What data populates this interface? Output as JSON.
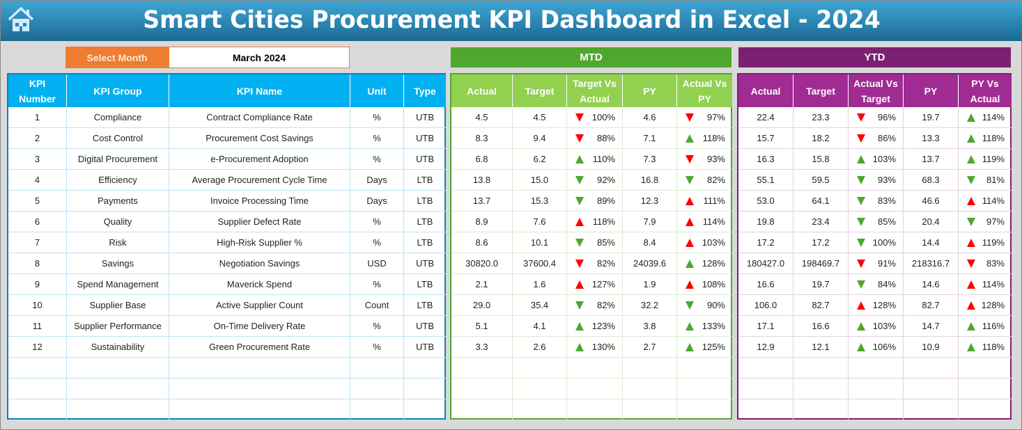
{
  "header": {
    "title": "Smart Cities Procurement KPI Dashboard in Excel - 2024",
    "home_icon": "home-icon"
  },
  "month_selector": {
    "label": "Select Month",
    "value": "March 2024"
  },
  "colors": {
    "kpi_header": "#00b0f0",
    "mtd_band": "#4ea72e",
    "mtd_header": "#92d050",
    "ytd_band": "#7b2171",
    "ytd_header": "#a02b93",
    "red": "#ff0000",
    "green": "#4ea72e"
  },
  "sections": {
    "mtd": "MTD",
    "ytd": "YTD"
  },
  "kpi_headers": [
    "KPI Number",
    "KPI Group",
    "KPI Name",
    "Unit",
    "Type"
  ],
  "mtd_headers": [
    "Actual",
    "Target",
    "Target Vs Actual",
    "PY",
    "Actual Vs PY"
  ],
  "ytd_headers": [
    "Actual",
    "Target",
    "Actual Vs Target",
    "PY",
    "PY Vs Actual"
  ],
  "rows": [
    {
      "kpi": [
        "1",
        "Compliance",
        "Contract Compliance Rate",
        "%",
        "UTB"
      ],
      "mtd": [
        "4.5",
        "4.5",
        [
          "down-red",
          "100%"
        ],
        "4.6",
        [
          "down-red",
          "97%"
        ]
      ],
      "ytd": [
        "22.4",
        "23.3",
        [
          "down-red",
          "96%"
        ],
        "19.7",
        [
          "up-green",
          "114%"
        ]
      ]
    },
    {
      "kpi": [
        "2",
        "Cost Control",
        "Procurement Cost Savings",
        "%",
        "UTB"
      ],
      "mtd": [
        "8.3",
        "9.4",
        [
          "down-red",
          "88%"
        ],
        "7.1",
        [
          "up-green",
          "118%"
        ]
      ],
      "ytd": [
        "15.7",
        "18.2",
        [
          "down-red",
          "86%"
        ],
        "13.3",
        [
          "up-green",
          "118%"
        ]
      ]
    },
    {
      "kpi": [
        "3",
        "Digital Procurement",
        "e-Procurement Adoption",
        "%",
        "UTB"
      ],
      "mtd": [
        "6.8",
        "6.2",
        [
          "up-green",
          "110%"
        ],
        "7.3",
        [
          "down-red",
          "93%"
        ]
      ],
      "ytd": [
        "16.3",
        "15.8",
        [
          "up-green",
          "103%"
        ],
        "13.7",
        [
          "up-green",
          "119%"
        ]
      ]
    },
    {
      "kpi": [
        "4",
        "Efficiency",
        "Average Procurement Cycle Time",
        "Days",
        "LTB"
      ],
      "mtd": [
        "13.8",
        "15.0",
        [
          "down-green",
          "92%"
        ],
        "16.8",
        [
          "down-green",
          "82%"
        ]
      ],
      "ytd": [
        "55.1",
        "59.5",
        [
          "down-green",
          "93%"
        ],
        "68.3",
        [
          "down-green",
          "81%"
        ]
      ]
    },
    {
      "kpi": [
        "5",
        "Payments",
        "Invoice Processing Time",
        "Days",
        "LTB"
      ],
      "mtd": [
        "13.7",
        "15.3",
        [
          "down-green",
          "89%"
        ],
        "12.3",
        [
          "up-red",
          "111%"
        ]
      ],
      "ytd": [
        "53.0",
        "64.1",
        [
          "down-green",
          "83%"
        ],
        "46.6",
        [
          "up-red",
          "114%"
        ]
      ]
    },
    {
      "kpi": [
        "6",
        "Quality",
        "Supplier Defect Rate",
        "%",
        "LTB"
      ],
      "mtd": [
        "8.9",
        "7.6",
        [
          "up-red",
          "118%"
        ],
        "7.9",
        [
          "up-red",
          "114%"
        ]
      ],
      "ytd": [
        "19.8",
        "23.4",
        [
          "down-green",
          "85%"
        ],
        "20.4",
        [
          "down-green",
          "97%"
        ]
      ]
    },
    {
      "kpi": [
        "7",
        "Risk",
        "High-Risk Supplier %",
        "%",
        "LTB"
      ],
      "mtd": [
        "8.6",
        "10.1",
        [
          "down-green",
          "85%"
        ],
        "8.4",
        [
          "up-red",
          "103%"
        ]
      ],
      "ytd": [
        "17.2",
        "17.2",
        [
          "down-green",
          "100%"
        ],
        "14.4",
        [
          "up-red",
          "119%"
        ]
      ]
    },
    {
      "kpi": [
        "8",
        "Savings",
        "Negotiation Savings",
        "USD",
        "UTB"
      ],
      "mtd": [
        "30820.0",
        "37600.4",
        [
          "down-red",
          "82%"
        ],
        "24039.6",
        [
          "up-green",
          "128%"
        ]
      ],
      "ytd": [
        "180427.0",
        "198469.7",
        [
          "down-red",
          "91%"
        ],
        "218316.7",
        [
          "down-red",
          "83%"
        ]
      ]
    },
    {
      "kpi": [
        "9",
        "Spend Management",
        "Maverick Spend",
        "%",
        "LTB"
      ],
      "mtd": [
        "2.1",
        "1.6",
        [
          "up-red",
          "127%"
        ],
        "1.9",
        [
          "up-red",
          "108%"
        ]
      ],
      "ytd": [
        "16.6",
        "19.7",
        [
          "down-green",
          "84%"
        ],
        "14.6",
        [
          "up-red",
          "114%"
        ]
      ]
    },
    {
      "kpi": [
        "10",
        "Supplier Base",
        "Active Supplier Count",
        "Count",
        "LTB"
      ],
      "mtd": [
        "29.0",
        "35.4",
        [
          "down-green",
          "82%"
        ],
        "32.2",
        [
          "down-green",
          "90%"
        ]
      ],
      "ytd": [
        "106.0",
        "82.7",
        [
          "up-red",
          "128%"
        ],
        "82.7",
        [
          "up-red",
          "128%"
        ]
      ]
    },
    {
      "kpi": [
        "11",
        "Supplier Performance",
        "On-Time Delivery Rate",
        "%",
        "UTB"
      ],
      "mtd": [
        "5.1",
        "4.1",
        [
          "up-green",
          "123%"
        ],
        "3.8",
        [
          "up-green",
          "133%"
        ]
      ],
      "ytd": [
        "17.1",
        "16.6",
        [
          "up-green",
          "103%"
        ],
        "14.7",
        [
          "up-green",
          "116%"
        ]
      ]
    },
    {
      "kpi": [
        "12",
        "Sustainability",
        "Green Procurement Rate",
        "%",
        "UTB"
      ],
      "mtd": [
        "3.3",
        "2.6",
        [
          "up-green",
          "130%"
        ],
        "2.7",
        [
          "up-green",
          "125%"
        ]
      ],
      "ytd": [
        "12.9",
        "12.1",
        [
          "up-green",
          "106%"
        ],
        "10.9",
        [
          "up-green",
          "118%"
        ]
      ]
    }
  ]
}
